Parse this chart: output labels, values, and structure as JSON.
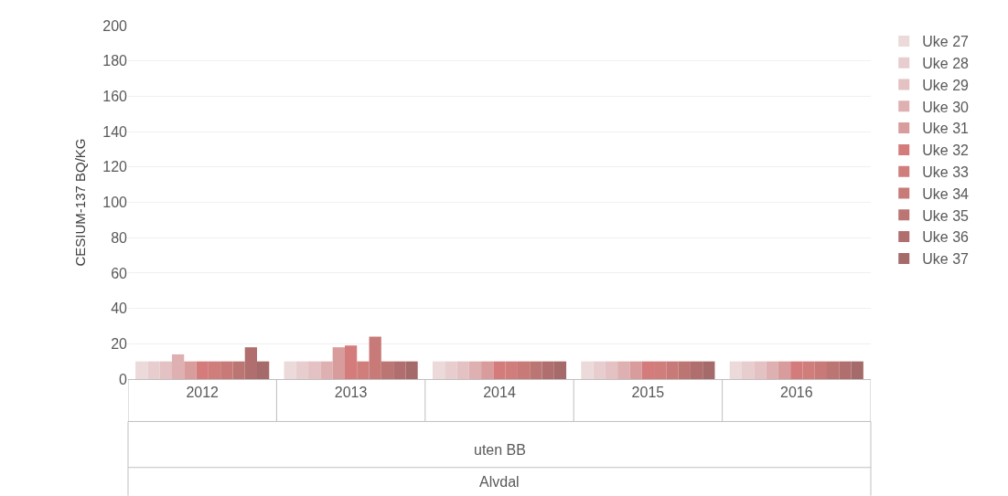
{
  "chart_data": {
    "type": "bar",
    "ylabel": "CESIUM-137 BQ/KG",
    "categories": [
      "2012",
      "2013",
      "2014",
      "2015",
      "2016"
    ],
    "annotations": [
      "uten BB",
      "Alvdal"
    ],
    "ylim": [
      0,
      200
    ],
    "yticks": [
      0,
      20,
      40,
      60,
      80,
      100,
      120,
      140,
      160,
      180,
      200
    ],
    "grid": "y",
    "legend": "right",
    "series": [
      {
        "name": "Uke 27",
        "color": "#ecd9da",
        "values": [
          10,
          10,
          10,
          10,
          10
        ]
      },
      {
        "name": "Uke 28",
        "color": "#e8cdcf",
        "values": [
          10,
          10,
          10,
          10,
          10
        ]
      },
      {
        "name": "Uke 29",
        "color": "#e4c1c2",
        "values": [
          10,
          10,
          10,
          10,
          10
        ]
      },
      {
        "name": "Uke 30",
        "color": "#deb0b1",
        "values": [
          14,
          10,
          10,
          10,
          10
        ]
      },
      {
        "name": "Uke 31",
        "color": "#d99c9c",
        "values": [
          10,
          18,
          10,
          10,
          10
        ]
      },
      {
        "name": "Uke 32",
        "color": "#d47c7c",
        "values": [
          10,
          19,
          10,
          10,
          10
        ]
      },
      {
        "name": "Uke 33",
        "color": "#cf7e7c",
        "values": [
          10,
          10,
          10,
          10,
          10
        ]
      },
      {
        "name": "Uke 34",
        "color": "#c77a78",
        "values": [
          10,
          24,
          10,
          10,
          10
        ]
      },
      {
        "name": "Uke 35",
        "color": "#bb7573",
        "values": [
          10,
          10,
          10,
          10,
          10
        ]
      },
      {
        "name": "Uke 36",
        "color": "#b06f6e",
        "values": [
          18,
          10,
          10,
          10,
          10
        ]
      },
      {
        "name": "Uke 37",
        "color": "#a46b6a",
        "values": [
          10,
          10,
          10,
          10,
          10
        ]
      }
    ]
  }
}
